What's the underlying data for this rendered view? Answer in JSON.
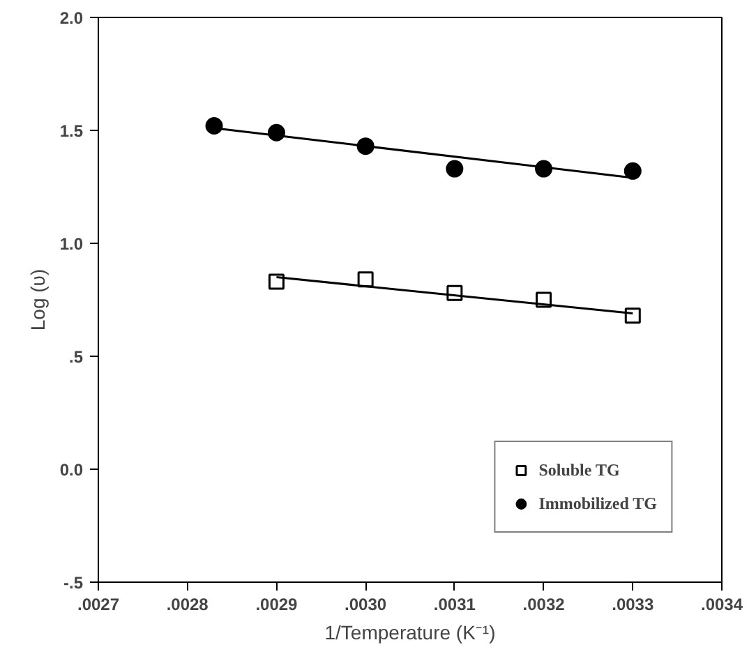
{
  "chart_data": {
    "type": "scatter",
    "xlabel": "1/Temperature (K⁻¹)",
    "ylabel": "Log (υ)",
    "xlim": [
      0.0027,
      0.0034
    ],
    "ylim": [
      -0.5,
      2.0
    ],
    "xticks": [
      {
        "value": 0.0027,
        "label": ".0027"
      },
      {
        "value": 0.0028,
        "label": ".0028"
      },
      {
        "value": 0.0029,
        "label": ".0029"
      },
      {
        "value": 0.003,
        "label": ".0030"
      },
      {
        "value": 0.0031,
        "label": ".0031"
      },
      {
        "value": 0.0032,
        "label": ".0032"
      },
      {
        "value": 0.0033,
        "label": ".0033"
      },
      {
        "value": 0.0034,
        "label": ".0034"
      }
    ],
    "yticks": [
      {
        "value": -0.5,
        "label": "-.5"
      },
      {
        "value": 0,
        "label": "0.0"
      },
      {
        "value": 0.5,
        "label": ".5"
      },
      {
        "value": 1.0,
        "label": "1.0"
      },
      {
        "value": 1.5,
        "label": "1.5"
      },
      {
        "value": 2.0,
        "label": "2.0"
      }
    ],
    "grid": false,
    "legend": "bottom right",
    "series": [
      {
        "name": "Soluble TG",
        "color": "#000000",
        "marker": "square",
        "x": [
          0.0029,
          0.003,
          0.0031,
          0.0032,
          0.0033
        ],
        "values": [
          0.83,
          0.84,
          0.78,
          0.75,
          0.68
        ]
      },
      {
        "name": "Immobilized TG",
        "color": "#000000",
        "marker": "circle",
        "x": [
          0.00283,
          0.0029,
          0.003,
          0.0031,
          0.0032,
          0.0033
        ],
        "values": [
          1.52,
          1.49,
          1.43,
          1.33,
          1.33,
          1.32
        ]
      },
      {
        "type": "line",
        "color": "#000000",
        "marker": "none",
        "x": [
          0.0029,
          0.0033
        ],
        "values": [
          0.85,
          0.69
        ]
      },
      {
        "type": "line",
        "color": "#000000",
        "marker": "none",
        "x": [
          0.00283,
          0.0033
        ],
        "values": [
          1.51,
          1.29
        ]
      }
    ]
  }
}
